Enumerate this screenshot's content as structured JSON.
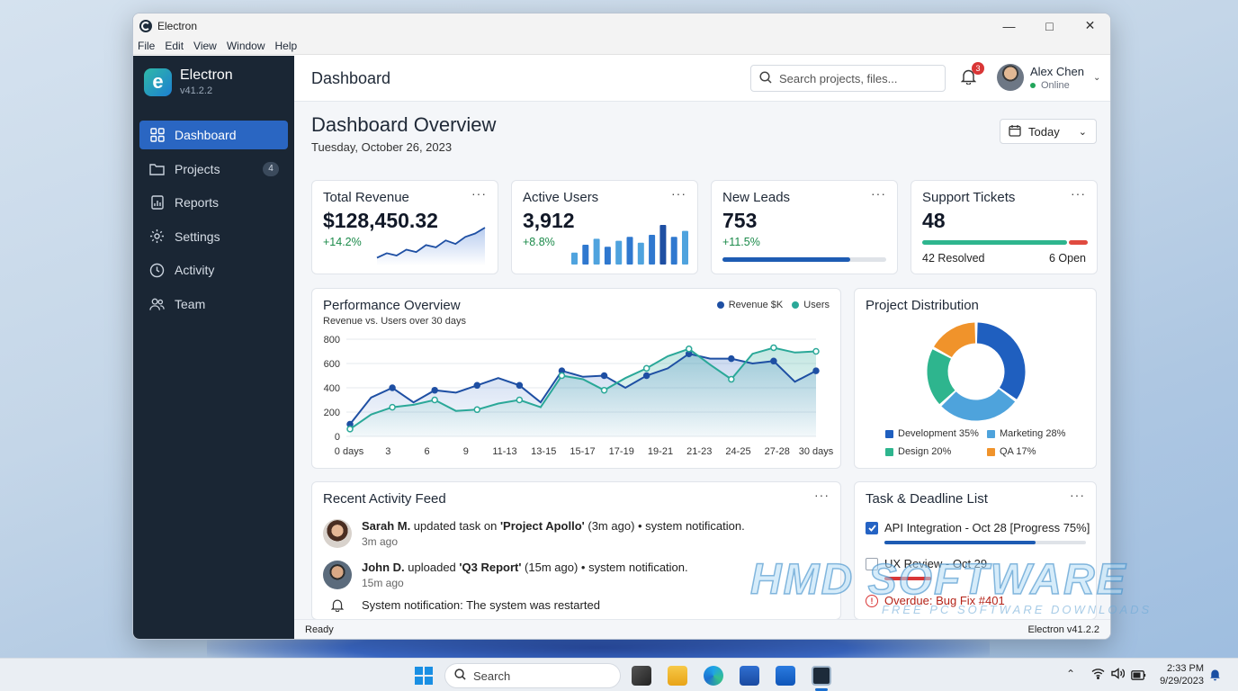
{
  "window": {
    "title": "Electron",
    "controls": [
      "minimize-icon",
      "maximize-icon",
      "close-icon"
    ]
  },
  "menu": [
    "File",
    "Edit",
    "View",
    "Window",
    "Help"
  ],
  "sidebar": {
    "app_name": "Electron",
    "version": "v41.2.2",
    "items": [
      {
        "label": "Dashboard",
        "icon": "grid-icon",
        "active": true
      },
      {
        "label": "Projects",
        "icon": "folder-icon",
        "badge": "4"
      },
      {
        "label": "Reports",
        "icon": "report-icon"
      },
      {
        "label": "Settings",
        "icon": "gear-icon"
      },
      {
        "label": "Activity",
        "icon": "clock-icon"
      },
      {
        "label": "Team",
        "icon": "people-icon"
      }
    ]
  },
  "header": {
    "title": "Dashboard",
    "search_placeholder": "Search projects, files...",
    "notifications": "3",
    "user_name": "Alex Chen",
    "user_status": "Online"
  },
  "overview": {
    "title": "Dashboard Overview",
    "date": "Tuesday, October 26, 2023",
    "range": "Today"
  },
  "kpis": {
    "revenue": {
      "title": "Total Revenue",
      "value": "$128,450.32",
      "change": "+14.2%"
    },
    "users": {
      "title": "Active Users",
      "value": "3,912",
      "change": "+8.8%"
    },
    "leads": {
      "title": "New Leads",
      "value": "753",
      "change": "+11.5%",
      "progress": 0.78
    },
    "tickets": {
      "title": "Support Tickets",
      "value": "48",
      "resolved": "42 Resolved",
      "open": "6 Open",
      "resolved_fraction": 0.875
    }
  },
  "performance": {
    "title": "Performance Overview",
    "subtitle": "Revenue vs. Users over 30 days",
    "legend": [
      "Revenue $K",
      "Users"
    ]
  },
  "distribution": {
    "title": "Project Distribution",
    "legend": [
      "Development 35%",
      "Marketing 28%",
      "Design 20%",
      "QA 17%"
    ]
  },
  "feed": {
    "title": "Recent Activity Feed",
    "items": [
      {
        "name": "Sarah M.",
        "pre": " updated task on ",
        "target": "'Project Apollo'",
        "post": " (3m ago) • system notification.",
        "time": "3m ago"
      },
      {
        "name": "John D.",
        "pre": " uploaded ",
        "target": "'Q3 Report'",
        "post": " (15m ago) • system notification.",
        "time": "15m ago"
      },
      {
        "text": "System notification: The system was restarted"
      }
    ]
  },
  "tasks": {
    "title": "Task & Deadline List",
    "items": [
      {
        "label": "API Integration - Oct 28 [Progress 75%]",
        "checked": true,
        "progress": 0.75
      },
      {
        "label": "UX Review - Oct 29",
        "checked": false
      },
      {
        "label": "Overdue: Bug Fix #401",
        "overdue": true
      }
    ]
  },
  "status": {
    "left": "Ready",
    "right": "Electron v41.2.2"
  },
  "watermark": {
    "line1": "HMD SOFTWARE",
    "line2": "FREE PC SOFTWARE DOWNLOADS"
  },
  "taskbar": {
    "search": "Search",
    "time": "2:33 PM",
    "date": "9/29/2023"
  },
  "colors": {
    "sidebar": "#1a2634",
    "accent": "#2a66c2",
    "revenue": "#1e4fa3",
    "users": "#2aa898",
    "development": "#1f5fbf",
    "marketing": "#4ea3dc",
    "design": "#2eb58e",
    "qa": "#f0932b"
  },
  "chart_data": [
    {
      "type": "area",
      "title": "Performance Overview",
      "subtitle": "Revenue vs. Users over 30 days",
      "categories": [
        "0 days",
        "3",
        "6",
        "9",
        "11-13",
        "13-15",
        "15-17",
        "17-19",
        "19-21",
        "21-23",
        "24-25",
        "27-28",
        "30 days"
      ],
      "ylim": [
        0,
        800
      ],
      "yticks": [
        0,
        200,
        400,
        600,
        800
      ],
      "x": [
        0,
        1,
        2,
        3,
        4,
        5,
        6,
        7,
        8,
        9,
        10,
        11,
        12,
        13,
        14,
        15,
        16,
        17,
        18,
        19,
        20,
        21,
        22
      ],
      "series": [
        {
          "name": "Revenue $K",
          "values": [
            100,
            320,
            400,
            280,
            380,
            360,
            420,
            480,
            420,
            280,
            540,
            490,
            500,
            400,
            500,
            560,
            680,
            640,
            640,
            600,
            620,
            450,
            540
          ]
        },
        {
          "name": "Users",
          "values": [
            60,
            180,
            240,
            260,
            300,
            210,
            220,
            270,
            300,
            240,
            500,
            470,
            380,
            480,
            560,
            660,
            720,
            590,
            470,
            680,
            730,
            690,
            700
          ]
        }
      ]
    },
    {
      "type": "pie",
      "title": "Project Distribution",
      "categories": [
        "Development",
        "Marketing",
        "Design",
        "QA"
      ],
      "values": [
        35,
        28,
        20,
        17
      ]
    },
    {
      "type": "area",
      "title": "Total Revenue",
      "values": [
        10,
        18,
        14,
        24,
        20,
        32,
        28,
        40,
        34,
        46,
        52,
        62
      ]
    },
    {
      "type": "bar",
      "title": "Active Users",
      "values": [
        12,
        20,
        26,
        18,
        24,
        28,
        22,
        30,
        40,
        28,
        34
      ]
    }
  ]
}
